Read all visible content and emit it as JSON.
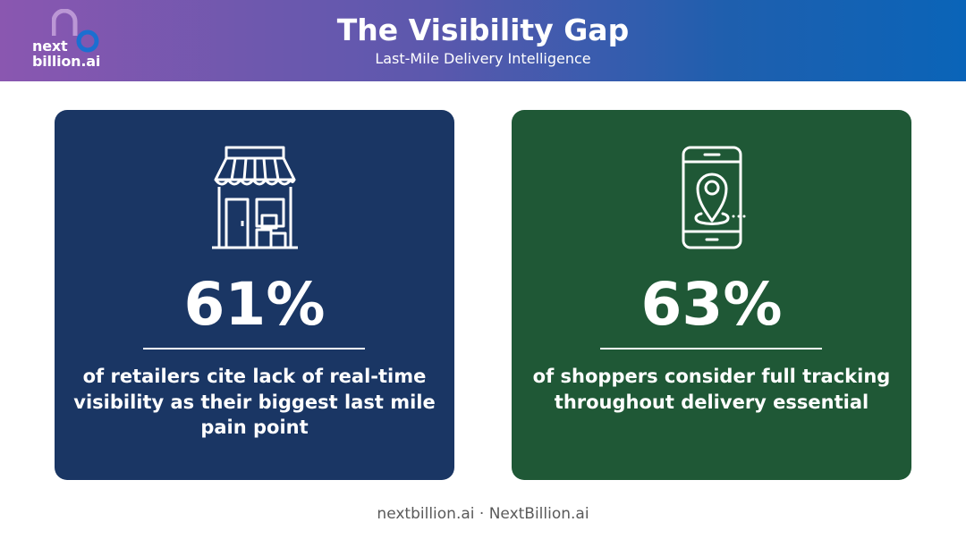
{
  "header": {
    "title": "The Visibility Gap",
    "subtitle": "Last-Mile Delivery Intelligence",
    "logo_text": "next\nbillion.ai",
    "background_colors": [
      "#8a57b0",
      "#0a64b8"
    ]
  },
  "cards": [
    {
      "icon": "storefront-icon",
      "stat": "61%",
      "description": "of retailers cite lack of real-time visibility as their biggest last mile pain point",
      "color": "#1a3664"
    },
    {
      "icon": "phone-location-pin-icon",
      "stat": "63%",
      "description": "of shoppers consider full tracking throughout delivery essential",
      "color": "#1f5836"
    }
  ],
  "footer": {
    "text": "nextbillion.ai · NextBillion.ai"
  }
}
